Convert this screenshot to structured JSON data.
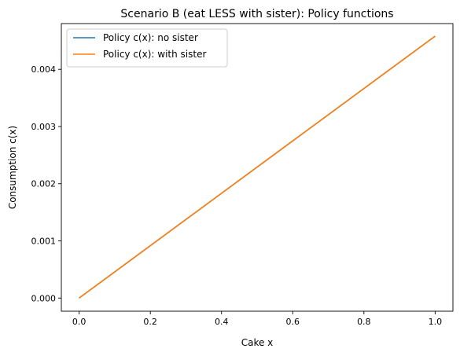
{
  "chart_data": {
    "type": "line",
    "title": "Scenario B (eat LESS with sister): Policy functions",
    "xlabel": "Cake x",
    "ylabel": "Consumption c(x)",
    "xlim": [
      -0.05,
      1.05
    ],
    "ylim": [
      -0.00023,
      0.0048
    ],
    "xticks": [
      0.0,
      0.2,
      0.4,
      0.6,
      0.8,
      1.0
    ],
    "xtick_labels": [
      "0.0",
      "0.2",
      "0.4",
      "0.6",
      "0.8",
      "1.0"
    ],
    "yticks": [
      0.0,
      0.001,
      0.002,
      0.003,
      0.004
    ],
    "ytick_labels": [
      "0.000",
      "0.001",
      "0.002",
      "0.003",
      "0.004"
    ],
    "grid": false,
    "legend_position": "upper-left",
    "series": [
      {
        "name": "Policy c(x): no sister",
        "color": "#1f77b4",
        "x": [
          0.0,
          1.0
        ],
        "y": [
          0.0,
          0.00458
        ]
      },
      {
        "name": "Policy c(x): with sister",
        "color": "#ff7f0e",
        "x": [
          0.0,
          1.0
        ],
        "y": [
          0.0,
          0.00458
        ]
      }
    ]
  }
}
